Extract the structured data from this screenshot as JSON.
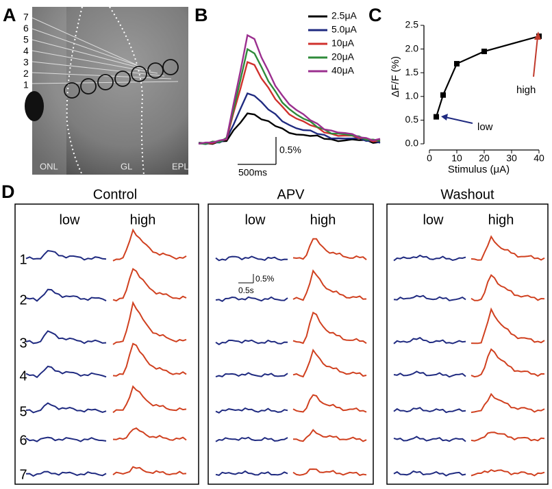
{
  "panel_labels": [
    "A",
    "B",
    "C",
    "D"
  ],
  "panel_a": {
    "positions": [
      "7",
      "6",
      "5",
      "4",
      "3",
      "2",
      "1"
    ],
    "layers": [
      "ONL",
      "GL",
      "EPL"
    ]
  },
  "panel_b": {
    "legend": [
      {
        "name": "2.5μA",
        "color": "#000000"
      },
      {
        "name": "5.0μA",
        "color": "#1f2a80"
      },
      {
        "name": "10μA",
        "color": "#d0312d"
      },
      {
        "name": "20μA",
        "color": "#2e8b3a"
      },
      {
        "name": "40μA",
        "color": "#9b2f8f"
      }
    ],
    "scale_y": "0.5%",
    "scale_x": "500ms"
  },
  "chart_data": {
    "type": "line",
    "x_label": "Stimulus (μA)",
    "y_label": "ΔF/F (%)",
    "x": [
      2.5,
      5,
      10,
      20,
      40
    ],
    "values": [
      0.57,
      1.03,
      1.69,
      1.95,
      2.27
    ],
    "color": "#000000",
    "xlim": [
      0,
      40
    ],
    "xticks": [
      0,
      10,
      20,
      30,
      40
    ],
    "ylim": [
      0,
      2.5
    ],
    "yticks": [
      {
        "value": 0,
        "label": "0.0"
      },
      {
        "value": 0.5,
        "label": "0.5"
      },
      {
        "value": 1,
        "label": "1.0"
      },
      {
        "value": 1.5,
        "label": "1.5"
      },
      {
        "value": 2,
        "label": "2.0"
      },
      {
        "value": 2.5,
        "label": "2.5"
      }
    ],
    "annotations": [
      {
        "text": "low",
        "color": "#1f2a80"
      },
      {
        "text": "high",
        "color": "#c0392b"
      }
    ]
  },
  "panel_d": {
    "conditions": [
      "Control",
      "APV",
      "Washout"
    ],
    "columns": [
      "low",
      "high"
    ],
    "rows": [
      "1",
      "2",
      "3",
      "4",
      "5",
      "6",
      "7"
    ],
    "scale_y": "0.5%",
    "scale_x": "0.5s",
    "low_color": "#1f2a80",
    "high_color": "#d0401f"
  }
}
